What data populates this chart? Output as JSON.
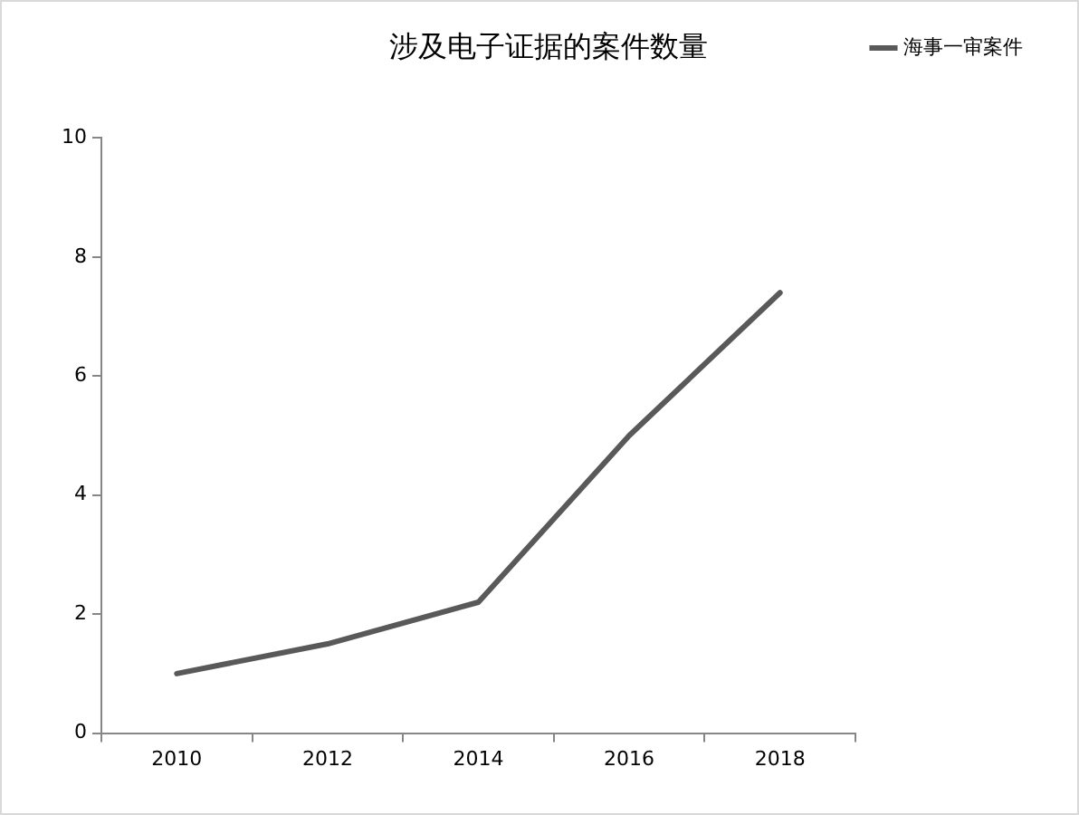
{
  "chart_data": {
    "type": "line",
    "title": "涉及电子证据的案件数量",
    "categories": [
      "2010",
      "2012",
      "2014",
      "2016",
      "2018"
    ],
    "series": [
      {
        "name": "海事一审案件",
        "color": "#595959",
        "values": [
          1,
          1.5,
          2.2,
          5,
          7.4
        ]
      }
    ],
    "ylim": [
      0,
      10
    ],
    "yticks": [
      0,
      2,
      4,
      6,
      8,
      10
    ],
    "grid": false,
    "legend": "top right",
    "marker": "none",
    "line_style": "solid"
  }
}
